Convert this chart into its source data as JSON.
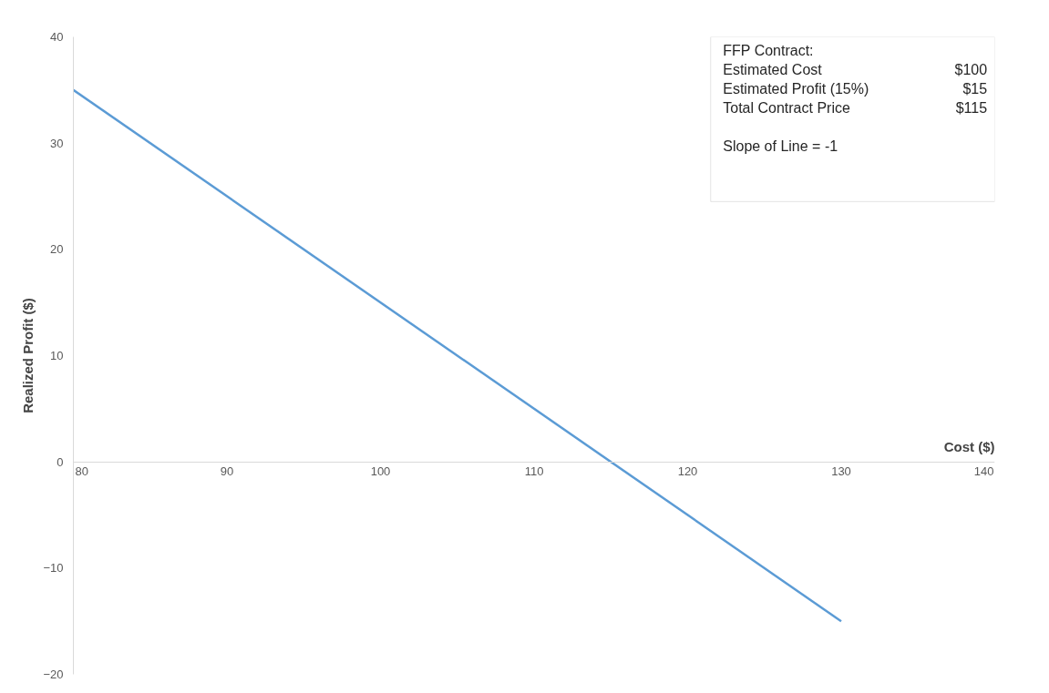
{
  "chart_data": {
    "type": "line",
    "xlabel": "Cost ($)",
    "ylabel": "Realized Profit ($)",
    "x": [
      80,
      130
    ],
    "series": [
      {
        "color": "#5b9bd5",
        "values": [
          35,
          -15
        ]
      }
    ],
    "xlim": [
      80,
      140
    ],
    "ylim": [
      -20,
      40
    ],
    "xticks": [
      80,
      90,
      100,
      110,
      120,
      130,
      140
    ],
    "yticks": [
      -20,
      -10,
      0,
      10,
      20,
      30,
      40
    ],
    "grid": false,
    "marker": "none",
    "line_style": "solid",
    "annotations": [
      "FFP Contract:",
      "Estimated Cost",
      "$100",
      "Estimated Profit (15%)",
      "$15",
      "Total Contract Price",
      "$115",
      "Slope of Line = -1"
    ]
  }
}
